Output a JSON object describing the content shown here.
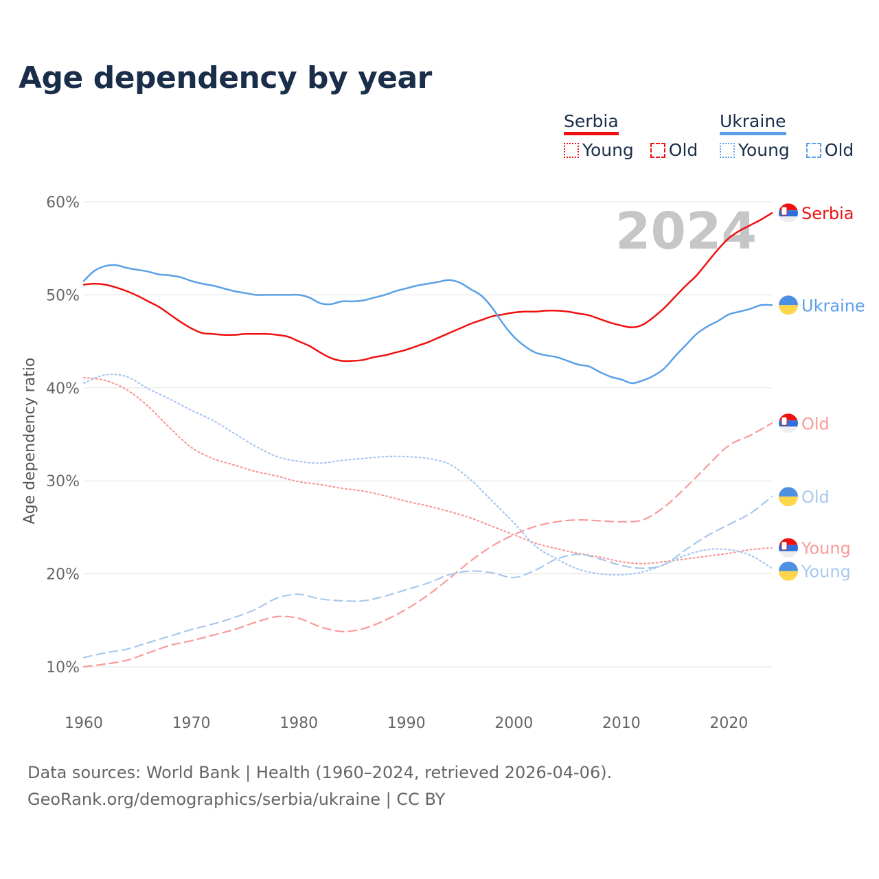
{
  "title": "Age dependency by year",
  "legend": {
    "groups": [
      {
        "name": "Serbia",
        "color": "#f01010",
        "items": [
          "Young",
          "Old"
        ]
      },
      {
        "name": "Ukraine",
        "color": "#5aa0e8",
        "items": [
          "Young",
          "Old"
        ]
      }
    ]
  },
  "year_watermark": "2024",
  "source": {
    "line1": "Data sources: World Bank | Health (1960–2024, retrieved 2026-04-06).",
    "line2": "GeoRank.org/demographics/serbia/ukraine | CC BY"
  },
  "chart_data": {
    "type": "line",
    "title": "Age dependency by year",
    "xlabel": "",
    "ylabel": "Age dependency ratio",
    "xlim": [
      1960,
      2024
    ],
    "ylim": [
      10,
      60
    ],
    "xticks": [
      1960,
      1970,
      1980,
      1990,
      2000,
      2010,
      2020
    ],
    "xtick_labels": [
      "1960",
      "1970",
      "1980",
      "1990",
      "2000",
      "2010",
      "2020"
    ],
    "yticks": [
      10,
      20,
      30,
      40,
      50,
      60
    ],
    "ytick_labels": [
      "10%",
      "20%",
      "30%",
      "40%",
      "50%",
      "60%"
    ],
    "grid": true,
    "legend_position": "top-right",
    "series": [
      {
        "name": "Serbia",
        "end_label": "Serbia",
        "country": "serbia",
        "color": "#f01010",
        "style": "solid",
        "x": [
          1960,
          1961,
          1962,
          1963,
          1964,
          1965,
          1966,
          1967,
          1968,
          1969,
          1970,
          1971,
          1972,
          1973,
          1974,
          1975,
          1976,
          1977,
          1978,
          1979,
          1980,
          1981,
          1982,
          1983,
          1984,
          1985,
          1986,
          1987,
          1988,
          1989,
          1990,
          1991,
          1992,
          1993,
          1994,
          1995,
          1996,
          1997,
          1998,
          1999,
          2000,
          2001,
          2002,
          2003,
          2004,
          2005,
          2006,
          2007,
          2008,
          2009,
          2010,
          2011,
          2012,
          2013,
          2014,
          2015,
          2016,
          2017,
          2018,
          2019,
          2020,
          2021,
          2022,
          2023,
          2024
        ],
        "y": [
          51.1,
          51.2,
          51.1,
          50.8,
          50.4,
          49.9,
          49.3,
          48.7,
          47.9,
          47.1,
          46.4,
          45.9,
          45.8,
          45.7,
          45.7,
          45.8,
          45.8,
          45.8,
          45.7,
          45.5,
          45.0,
          44.5,
          43.8,
          43.2,
          42.9,
          42.9,
          43.0,
          43.3,
          43.5,
          43.8,
          44.1,
          44.5,
          44.9,
          45.4,
          45.9,
          46.4,
          46.9,
          47.3,
          47.7,
          47.9,
          48.1,
          48.2,
          48.2,
          48.3,
          48.3,
          48.2,
          48.0,
          47.8,
          47.4,
          47.0,
          46.7,
          46.5,
          46.8,
          47.6,
          48.6,
          49.8,
          51.0,
          52.1,
          53.5,
          54.9,
          56.1,
          56.9,
          57.5,
          58.1,
          58.8
        ]
      },
      {
        "name": "Ukraine",
        "end_label": "Ukraine",
        "country": "ukraine",
        "color": "#5aa0e8",
        "style": "solid",
        "x": [
          1960,
          1961,
          1962,
          1963,
          1964,
          1965,
          1966,
          1967,
          1968,
          1969,
          1970,
          1971,
          1972,
          1973,
          1974,
          1975,
          1976,
          1977,
          1978,
          1979,
          1980,
          1981,
          1982,
          1983,
          1984,
          1985,
          1986,
          1987,
          1988,
          1989,
          1990,
          1991,
          1992,
          1993,
          1994,
          1995,
          1996,
          1997,
          1998,
          1999,
          2000,
          2001,
          2002,
          2003,
          2004,
          2005,
          2006,
          2007,
          2008,
          2009,
          2010,
          2011,
          2012,
          2013,
          2014,
          2015,
          2016,
          2017,
          2018,
          2019,
          2020,
          2021,
          2022,
          2023,
          2024
        ],
        "y": [
          51.5,
          52.6,
          53.1,
          53.2,
          52.9,
          52.7,
          52.5,
          52.2,
          52.1,
          51.9,
          51.5,
          51.2,
          51.0,
          50.7,
          50.4,
          50.2,
          50.0,
          50.0,
          50.0,
          50.0,
          50.0,
          49.7,
          49.1,
          49.0,
          49.3,
          49.3,
          49.4,
          49.7,
          50.0,
          50.4,
          50.7,
          51.0,
          51.2,
          51.4,
          51.6,
          51.3,
          50.6,
          49.9,
          48.6,
          46.9,
          45.5,
          44.5,
          43.8,
          43.5,
          43.3,
          42.9,
          42.5,
          42.3,
          41.7,
          41.2,
          40.9,
          40.5,
          40.8,
          41.3,
          42.1,
          43.4,
          44.6,
          45.8,
          46.6,
          47.2,
          47.9,
          48.2,
          48.5,
          48.9,
          48.9
        ]
      },
      {
        "name": "Serbia Old",
        "end_label": "Old",
        "country": "serbia",
        "color": "#f89a9a",
        "style": "dashed",
        "x": [
          1960,
          1962,
          1964,
          1966,
          1968,
          1970,
          1972,
          1974,
          1976,
          1978,
          1980,
          1982,
          1984,
          1986,
          1988,
          1990,
          1992,
          1994,
          1996,
          1998,
          2000,
          2002,
          2004,
          2006,
          2008,
          2010,
          2012,
          2014,
          2016,
          2018,
          2020,
          2022,
          2024
        ],
        "y": [
          10.0,
          10.3,
          10.7,
          11.5,
          12.3,
          12.8,
          13.4,
          14.0,
          14.8,
          15.4,
          15.2,
          14.3,
          13.8,
          14.1,
          15.0,
          16.2,
          17.7,
          19.5,
          21.4,
          23.0,
          24.2,
          25.1,
          25.6,
          25.8,
          25.7,
          25.6,
          25.8,
          27.2,
          29.3,
          31.6,
          33.8,
          34.9,
          36.2
        ]
      },
      {
        "name": "Ukraine Old",
        "end_label": "Old",
        "country": "ukraine",
        "color": "#a8c8ee",
        "style": "dashed",
        "x": [
          1960,
          1962,
          1964,
          1966,
          1968,
          1970,
          1972,
          1974,
          1976,
          1978,
          1980,
          1982,
          1984,
          1986,
          1988,
          1990,
          1992,
          1994,
          1996,
          1998,
          2000,
          2002,
          2004,
          2006,
          2008,
          2010,
          2012,
          2014,
          2016,
          2018,
          2020,
          2022,
          2024
        ],
        "y": [
          11.0,
          11.5,
          11.9,
          12.6,
          13.3,
          14.0,
          14.6,
          15.3,
          16.2,
          17.4,
          17.8,
          17.3,
          17.1,
          17.1,
          17.6,
          18.3,
          19.0,
          19.9,
          20.3,
          20.1,
          19.6,
          20.4,
          21.6,
          22.1,
          21.6,
          20.9,
          20.6,
          21.0,
          22.6,
          24.1,
          25.3,
          26.5,
          28.3
        ]
      },
      {
        "name": "Serbia Young",
        "end_label": "Young",
        "country": "serbia",
        "color": "#f89a9a",
        "style": "dotted",
        "x": [
          1960,
          1962,
          1964,
          1966,
          1968,
          1970,
          1972,
          1974,
          1976,
          1978,
          1980,
          1982,
          1984,
          1986,
          1988,
          1990,
          1992,
          1994,
          1996,
          1998,
          2000,
          2002,
          2004,
          2006,
          2008,
          2010,
          2012,
          2014,
          2016,
          2018,
          2020,
          2022,
          2024
        ],
        "y": [
          41.1,
          40.8,
          39.8,
          38.0,
          35.7,
          33.6,
          32.4,
          31.7,
          31.0,
          30.5,
          29.9,
          29.6,
          29.2,
          28.9,
          28.4,
          27.8,
          27.3,
          26.7,
          26.0,
          25.1,
          24.2,
          23.3,
          22.7,
          22.2,
          21.8,
          21.3,
          21.1,
          21.3,
          21.6,
          21.9,
          22.2,
          22.6,
          22.8
        ]
      },
      {
        "name": "Ukraine Young",
        "end_label": "Young",
        "country": "ukraine",
        "color": "#a8c8ee",
        "style": "dotted",
        "x": [
          1960,
          1962,
          1964,
          1966,
          1968,
          1970,
          1972,
          1974,
          1976,
          1978,
          1980,
          1982,
          1984,
          1986,
          1988,
          1990,
          1992,
          1994,
          1996,
          1998,
          2000,
          2002,
          2004,
          2006,
          2008,
          2010,
          2012,
          2014,
          2016,
          2018,
          2020,
          2022,
          2024
        ],
        "y": [
          40.5,
          41.4,
          41.2,
          39.9,
          38.8,
          37.6,
          36.5,
          35.1,
          33.7,
          32.6,
          32.1,
          31.9,
          32.2,
          32.4,
          32.6,
          32.6,
          32.4,
          31.8,
          30.1,
          27.8,
          25.5,
          23.0,
          21.6,
          20.5,
          20.0,
          19.9,
          20.2,
          21.0,
          22.0,
          22.6,
          22.6,
          22.0,
          20.6
        ]
      }
    ]
  }
}
